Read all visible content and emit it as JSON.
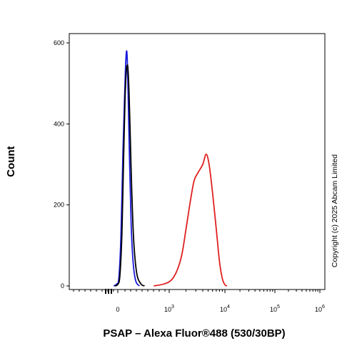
{
  "chart_data": {
    "type": "line",
    "xlabel": "PSAP – Alexa Fluor®488 (530/30BP)",
    "ylabel": "Count",
    "x_scale": "biexponential",
    "ylim": [
      0,
      620
    ],
    "y_ticks": [
      0,
      200,
      400,
      600
    ],
    "x_ticks": [
      {
        "base": "0",
        "exp": ""
      },
      {
        "base": "10",
        "exp": "3"
      },
      {
        "base": "10",
        "exp": "4"
      },
      {
        "base": "10",
        "exp": "5"
      },
      {
        "base": "10",
        "exp": "6"
      }
    ],
    "grid": false,
    "legend": "none",
    "annotation": "Copyright (c) 2025 Abcam Limited",
    "series": [
      {
        "color": "#1a1adc",
        "points": [
          [
            -80,
            0
          ],
          [
            -20,
            5
          ],
          [
            20,
            20
          ],
          [
            60,
            120
          ],
          [
            100,
            330
          ],
          [
            130,
            460
          ],
          [
            150,
            540
          ],
          [
            170,
            580
          ],
          [
            185,
            555
          ],
          [
            200,
            480
          ],
          [
            230,
            300
          ],
          [
            260,
            150
          ],
          [
            300,
            55
          ],
          [
            350,
            12
          ],
          [
            420,
            0
          ]
        ]
      },
      {
        "color": "#000000",
        "points": [
          [
            -60,
            0
          ],
          [
            0,
            4
          ],
          [
            40,
            25
          ],
          [
            80,
            130
          ],
          [
            110,
            300
          ],
          [
            140,
            460
          ],
          [
            165,
            530
          ],
          [
            190,
            545
          ],
          [
            205,
            520
          ],
          [
            220,
            470
          ],
          [
            240,
            380
          ],
          [
            270,
            240
          ],
          [
            310,
            110
          ],
          [
            370,
            30
          ],
          [
            450,
            5
          ],
          [
            520,
            0
          ]
        ]
      },
      {
        "color": "#e02020",
        "points": [
          [
            700,
            0
          ],
          [
            900,
            5
          ],
          [
            1100,
            15
          ],
          [
            1400,
            40
          ],
          [
            1700,
            80
          ],
          [
            2000,
            140
          ],
          [
            2400,
            210
          ],
          [
            2800,
            260
          ],
          [
            3300,
            280
          ],
          [
            4000,
            300
          ],
          [
            4600,
            325
          ],
          [
            5200,
            300
          ],
          [
            6000,
            230
          ],
          [
            7000,
            140
          ],
          [
            8000,
            60
          ],
          [
            9000,
            18
          ],
          [
            10000,
            3
          ],
          [
            11000,
            0
          ]
        ]
      }
    ]
  }
}
